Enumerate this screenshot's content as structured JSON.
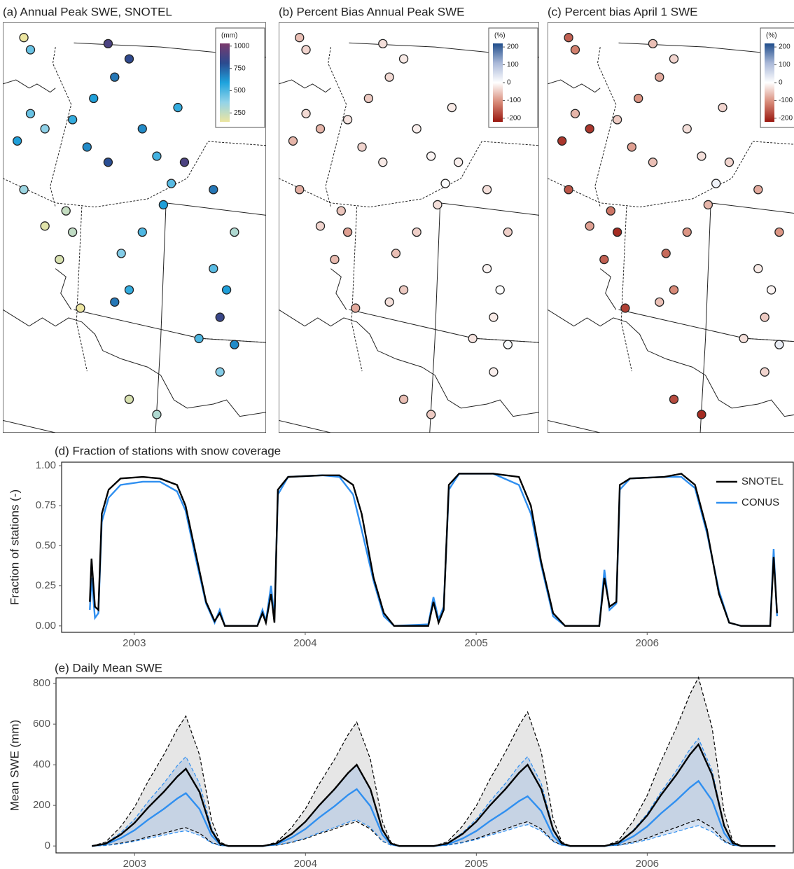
{
  "chart_data": [
    {
      "type": "map",
      "title": "(a) Annual Peak SWE, SNOTEL",
      "colorbar_label": "(mm)",
      "xlim": [
        -124,
        -104
      ],
      "ylim": [
        36,
        49.5
      ],
      "clim": [
        150,
        1030
      ],
      "cticks": [
        250,
        500,
        750,
        1000
      ],
      "colors": [
        "#ece5a0",
        "#93d3e8",
        "#1ea3dd",
        "#2b4a8f",
        "#7b3a6c"
      ],
      "lon": [
        -122.4,
        -121.9,
        -116.0,
        -114.4,
        -115.5,
        -117.1,
        -118.7,
        -120.8,
        -117.6,
        -116.0,
        -112.3,
        -111.2,
        -110.2,
        -111.8,
        -113.4,
        -115.0,
        -114.4,
        -115.5,
        -118.1,
        -108.0,
        -107.0,
        -107.5,
        -109.1,
        -106.4,
        -107.5,
        -114.4,
        -112.3,
        -122.4,
        -120.8,
        -119.2,
        -108.0,
        -106.4,
        -121.9,
        -122.9,
        -110.7,
        -113.4,
        -119.7,
        -118.7
      ],
      "lat": [
        49.0,
        48.6,
        48.8,
        48.3,
        47.7,
        47.0,
        46.3,
        46.0,
        45.4,
        44.9,
        45.1,
        44.2,
        44.9,
        43.5,
        42.6,
        41.9,
        40.7,
        40.3,
        40.1,
        41.4,
        40.7,
        39.8,
        39.1,
        38.9,
        38.0,
        37.1,
        36.6,
        44.0,
        42.8,
        43.3,
        44.0,
        42.6,
        46.5,
        45.6,
        46.7,
        46.0,
        41.7,
        42.6
      ],
      "values": [
        120,
        450,
        900,
        820,
        700,
        600,
        550,
        380,
        650,
        800,
        520,
        480,
        900,
        600,
        500,
        400,
        550,
        700,
        150,
        480,
        600,
        850,
        500,
        650,
        400,
        200,
        300,
        350,
        180,
        250,
        700,
        300,
        450,
        600,
        550,
        650,
        200,
        260
      ]
    },
    {
      "type": "map",
      "title": "(b) Percent Bias Annual Peak SWE",
      "colorbar_label": "(%)",
      "xlim": [
        -124,
        -104
      ],
      "ylim": [
        36,
        49.5
      ],
      "clim": [
        -220,
        220
      ],
      "cticks": [
        -200,
        -100,
        0,
        100,
        200
      ],
      "colors": [
        "#99170f",
        "#d88a78",
        "#ffffff",
        "#a9b8d8",
        "#1f4d8b"
      ],
      "lon": [
        -122.4,
        -121.9,
        -116.0,
        -114.4,
        -115.5,
        -117.1,
        -118.7,
        -120.8,
        -117.6,
        -116.0,
        -112.3,
        -111.2,
        -110.2,
        -111.8,
        -113.4,
        -115.0,
        -114.4,
        -115.5,
        -118.1,
        -108.0,
        -107.0,
        -107.5,
        -109.1,
        -106.4,
        -107.5,
        -114.4,
        -112.3,
        -122.4,
        -120.8,
        -119.2,
        -108.0,
        -106.4,
        -121.9,
        -122.9,
        -110.7,
        -113.4,
        -119.7,
        -118.7
      ],
      "lat": [
        49.0,
        48.6,
        48.8,
        48.3,
        47.7,
        47.0,
        46.3,
        46.0,
        45.4,
        44.9,
        45.1,
        44.2,
        44.9,
        43.5,
        42.6,
        41.9,
        40.7,
        40.3,
        40.1,
        41.4,
        40.7,
        39.8,
        39.1,
        38.9,
        38.0,
        37.1,
        36.6,
        44.0,
        42.8,
        43.3,
        44.0,
        42.6,
        46.5,
        45.6,
        46.7,
        46.0,
        41.7,
        42.6
      ],
      "values": [
        -60,
        -40,
        -30,
        -20,
        -35,
        -50,
        -25,
        -70,
        -40,
        -20,
        -10,
        5,
        -15,
        -30,
        -45,
        -60,
        -50,
        -30,
        -80,
        -10,
        0,
        -20,
        -25,
        10,
        -15,
        -60,
        -50,
        -75,
        -40,
        -55,
        -30,
        -45,
        -35,
        -70,
        -20,
        -15,
        -65,
        -90
      ]
    },
    {
      "type": "map",
      "title": "(c) Percent bias April 1 SWE",
      "colorbar_label": "(%)",
      "xlim": [
        -124,
        -104
      ],
      "ylim": [
        36,
        49.5
      ],
      "clim": [
        -220,
        220
      ],
      "cticks": [
        -200,
        -100,
        0,
        100,
        200
      ],
      "colors": [
        "#99170f",
        "#d88a78",
        "#ffffff",
        "#a9b8d8",
        "#1f4d8b"
      ],
      "lon": [
        -122.4,
        -121.9,
        -116.0,
        -114.4,
        -115.5,
        -117.1,
        -118.7,
        -120.8,
        -117.6,
        -116.0,
        -112.3,
        -111.2,
        -110.2,
        -111.8,
        -113.4,
        -115.0,
        -114.4,
        -115.5,
        -118.1,
        -108.0,
        -107.0,
        -107.5,
        -109.1,
        -106.4,
        -107.5,
        -114.4,
        -112.3,
        -122.4,
        -120.8,
        -119.2,
        -108.0,
        -106.4,
        -121.9,
        -122.9,
        -110.7,
        -113.4,
        -119.7,
        -118.7
      ],
      "lat": [
        49.0,
        48.6,
        48.8,
        48.3,
        47.7,
        47.0,
        46.3,
        46.0,
        45.4,
        44.9,
        45.1,
        44.2,
        44.9,
        43.5,
        42.6,
        41.9,
        40.7,
        40.3,
        40.1,
        41.4,
        40.7,
        39.8,
        39.1,
        38.9,
        38.0,
        37.1,
        36.6,
        44.0,
        42.8,
        43.3,
        44.0,
        42.6,
        46.5,
        45.6,
        46.7,
        46.0,
        41.7,
        42.6
      ],
      "values": [
        -150,
        -120,
        -60,
        -40,
        -80,
        -100,
        -50,
        -190,
        -90,
        -60,
        -30,
        20,
        -40,
        -70,
        -100,
        -140,
        -110,
        -60,
        -180,
        -20,
        -10,
        -50,
        -30,
        30,
        -40,
        -170,
        -200,
        -160,
        -90,
        -130,
        -80,
        -100,
        -70,
        -190,
        -40,
        -30,
        -150,
        -200
      ]
    },
    {
      "type": "line",
      "title": "(d) Fraction of stations with snow coverage",
      "ylabel": "Fraction of stations (-)",
      "xlim": [
        2002.575,
        2006.855
      ],
      "ylim": [
        -0.04,
        1.022
      ],
      "xticks": [
        2003,
        2004,
        2005,
        2006
      ],
      "yticks": [
        {
          "value": 0,
          "label": "0.00"
        },
        {
          "value": 0.25,
          "label": "0.25"
        },
        {
          "value": 0.5,
          "label": "0.50"
        },
        {
          "value": 0.75,
          "label": "0.75"
        },
        {
          "value": 1,
          "label": "1.00"
        }
      ],
      "legend": "upper right",
      "x": [
        2002.74,
        2002.75,
        2002.77,
        2002.79,
        2002.81,
        2002.85,
        2002.92,
        2003.05,
        2003.15,
        2003.25,
        2003.3,
        2003.36,
        2003.42,
        2003.47,
        2003.5,
        2003.53,
        2003.72,
        2003.75,
        2003.77,
        2003.8,
        2003.82,
        2003.84,
        2003.9,
        2004.1,
        2004.2,
        2004.28,
        2004.33,
        2004.4,
        2004.46,
        2004.52,
        2004.72,
        2004.75,
        2004.78,
        2004.81,
        2004.84,
        2004.9,
        2005.1,
        2005.25,
        2005.32,
        2005.38,
        2005.45,
        2005.52,
        2005.72,
        2005.75,
        2005.78,
        2005.82,
        2005.84,
        2005.9,
        2006.1,
        2006.2,
        2006.28,
        2006.35,
        2006.42,
        2006.48,
        2006.55,
        2006.72,
        2006.74,
        2006.76
      ],
      "series": [
        {
          "name": "SNOTEL",
          "color": "#000000",
          "values": [
            0.15,
            0.42,
            0.12,
            0.1,
            0.7,
            0.85,
            0.92,
            0.93,
            0.92,
            0.88,
            0.75,
            0.45,
            0.15,
            0.03,
            0.08,
            0.0,
            0.0,
            0.08,
            0.02,
            0.2,
            0.02,
            0.85,
            0.93,
            0.94,
            0.94,
            0.88,
            0.7,
            0.3,
            0.08,
            0.0,
            0.0,
            0.15,
            0.02,
            0.1,
            0.88,
            0.95,
            0.95,
            0.93,
            0.75,
            0.4,
            0.08,
            0.0,
            0.0,
            0.3,
            0.12,
            0.15,
            0.88,
            0.92,
            0.93,
            0.95,
            0.88,
            0.6,
            0.2,
            0.02,
            0.0,
            0.0,
            0.43,
            0.08
          ]
        },
        {
          "name": "CONUS",
          "color": "#2f8ff0",
          "values": [
            0.1,
            0.3,
            0.05,
            0.08,
            0.65,
            0.8,
            0.88,
            0.9,
            0.9,
            0.84,
            0.72,
            0.42,
            0.14,
            0.02,
            0.1,
            0.0,
            0.0,
            0.1,
            0.03,
            0.25,
            0.05,
            0.82,
            0.93,
            0.94,
            0.93,
            0.82,
            0.6,
            0.28,
            0.06,
            0.0,
            0.01,
            0.18,
            0.04,
            0.12,
            0.85,
            0.95,
            0.95,
            0.88,
            0.7,
            0.38,
            0.06,
            0.0,
            0.0,
            0.35,
            0.1,
            0.14,
            0.85,
            0.92,
            0.93,
            0.93,
            0.86,
            0.58,
            0.22,
            0.02,
            0.0,
            0.0,
            0.48,
            0.06
          ]
        }
      ]
    },
    {
      "type": "line",
      "title": "(e) Daily Mean SWE",
      "ylabel": "Mean SWE (mm)",
      "xlim": [
        2002.54,
        2006.855
      ],
      "ylim": [
        -34,
        828
      ],
      "xticks": [
        2003,
        2004,
        2005,
        2006
      ],
      "yticks": [
        0,
        200,
        400,
        600,
        800
      ],
      "x": [
        2002.75,
        2002.83,
        2002.92,
        2003.0,
        2003.08,
        2003.17,
        2003.25,
        2003.3,
        2003.38,
        2003.45,
        2003.5,
        2003.55,
        2003.75,
        2003.83,
        2003.92,
        2004.0,
        2004.08,
        2004.17,
        2004.25,
        2004.3,
        2004.38,
        2004.45,
        2004.5,
        2004.55,
        2004.75,
        2004.83,
        2004.92,
        2005.0,
        2005.08,
        2005.17,
        2005.25,
        2005.3,
        2005.38,
        2005.45,
        2005.5,
        2005.55,
        2005.75,
        2005.83,
        2005.92,
        2006.0,
        2006.08,
        2006.17,
        2006.25,
        2006.3,
        2006.38,
        2006.45,
        2006.5,
        2006.55,
        2006.75
      ],
      "series": [
        {
          "color": "#000000",
          "band_color": "#c8c8c8",
          "values": [
            0,
            11,
            57,
            114,
            190,
            266,
            342,
            380,
            266,
            76,
            11,
            0,
            0,
            12,
            60,
            120,
            200,
            280,
            360,
            400,
            280,
            80,
            12,
            0,
            0,
            12,
            60,
            120,
            200,
            280,
            360,
            400,
            280,
            80,
            12,
            0,
            0,
            15,
            75,
            150,
            250,
            350,
            450,
            500,
            350,
            100,
            15,
            0,
            0
          ],
          "upper": [
            0,
            19,
            96,
            192,
            320,
            448,
            576,
            640,
            448,
            128,
            19,
            0,
            0,
            18,
            92,
            183,
            305,
            427,
            549,
            610,
            427,
            122,
            18,
            0,
            0,
            20,
            99,
            198,
            330,
            462,
            594,
            660,
            462,
            132,
            20,
            0,
            0,
            25,
            125,
            249,
            415,
            581,
            747,
            830,
            581,
            166,
            25,
            0,
            0
          ],
          "lower": [
            0,
            3,
            14,
            27,
            45,
            63,
            81,
            90,
            63,
            18,
            3,
            0,
            0,
            4,
            18,
            36,
            60,
            84,
            108,
            120,
            84,
            24,
            4,
            0,
            0,
            4,
            18,
            36,
            60,
            84,
            108,
            120,
            84,
            24,
            4,
            0,
            0,
            4,
            20,
            39,
            65,
            91,
            117,
            130,
            91,
            26,
            4,
            0,
            0
          ]
        },
        {
          "color": "#2f8ff0",
          "band_color": "#9fbde3",
          "values": [
            0,
            8,
            39,
            78,
            130,
            182,
            234,
            260,
            182,
            52,
            8,
            0,
            0,
            8,
            42,
            84,
            140,
            196,
            252,
            280,
            196,
            56,
            8,
            0,
            0,
            7,
            37,
            74,
            123,
            172,
            221,
            245,
            172,
            49,
            7,
            0,
            0,
            10,
            48,
            96,
            160,
            224,
            288,
            320,
            224,
            64,
            10,
            0,
            0
          ],
          "upper": [
            0,
            13,
            66,
            132,
            220,
            308,
            396,
            440,
            308,
            88,
            13,
            0,
            0,
            12,
            60,
            120,
            200,
            280,
            360,
            400,
            280,
            80,
            12,
            0,
            0,
            13,
            66,
            132,
            220,
            308,
            396,
            440,
            308,
            88,
            13,
            0,
            0,
            16,
            80,
            159,
            265,
            371,
            477,
            530,
            371,
            106,
            16,
            0,
            0
          ],
          "lower": [
            0,
            2,
            11,
            23,
            38,
            53,
            68,
            75,
            53,
            15,
            2,
            0,
            0,
            4,
            20,
            39,
            65,
            91,
            117,
            130,
            91,
            26,
            4,
            0,
            0,
            3,
            16,
            32,
            53,
            74,
            95,
            105,
            74,
            21,
            3,
            0,
            0,
            3,
            15,
            30,
            50,
            70,
            90,
            100,
            70,
            20,
            3,
            0,
            0
          ]
        }
      ]
    }
  ]
}
